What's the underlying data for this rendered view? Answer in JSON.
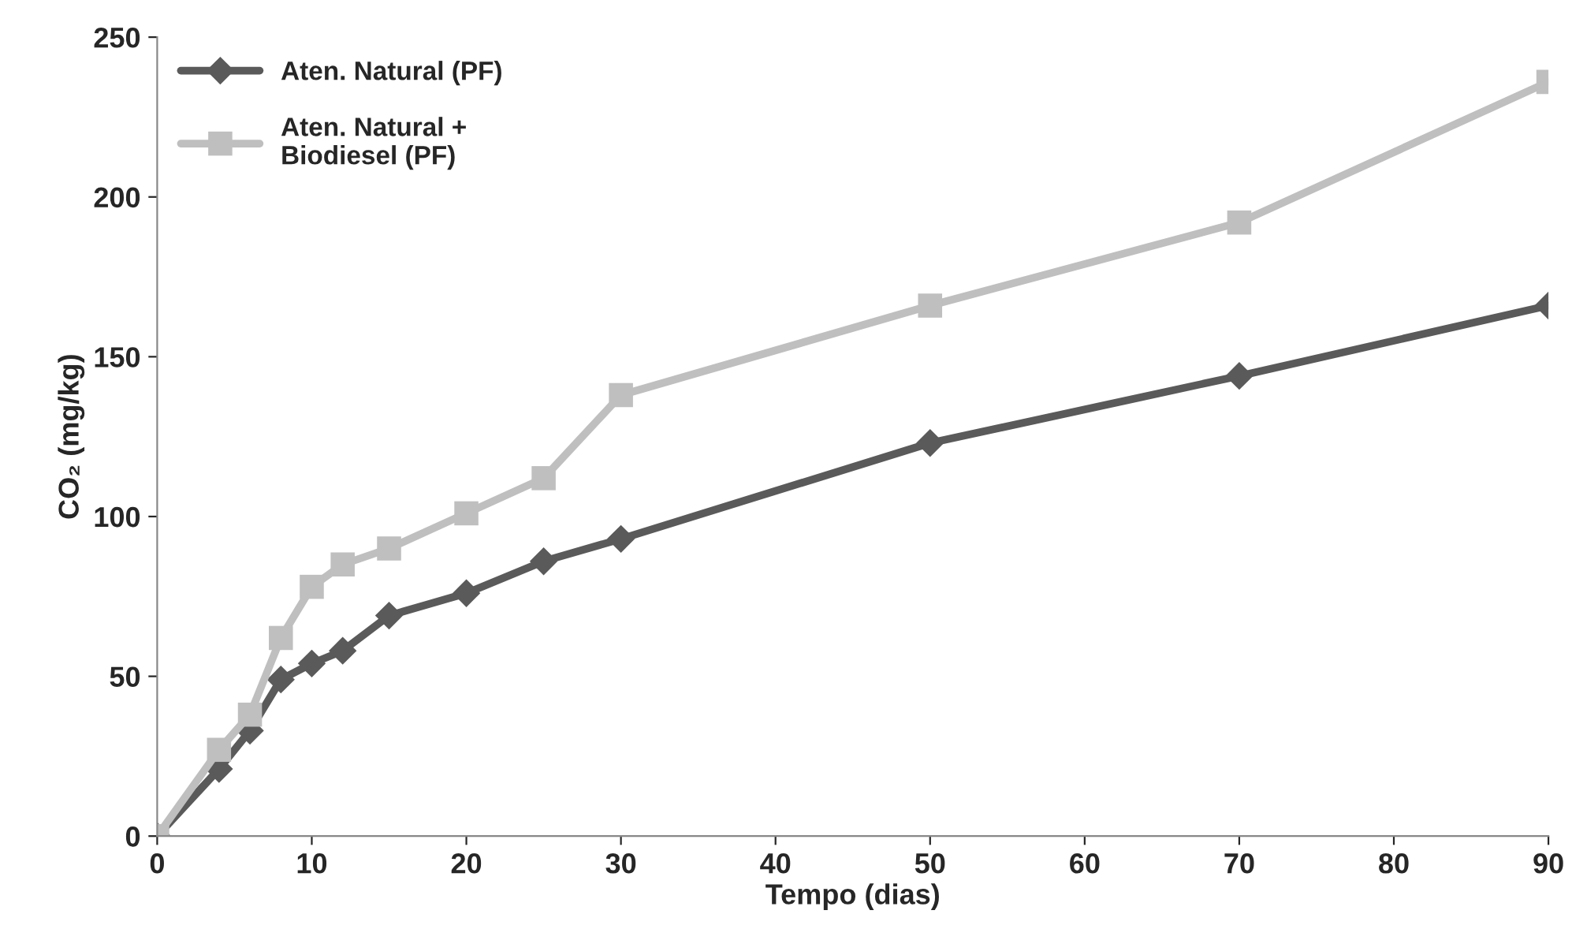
{
  "chart_data": {
    "type": "line",
    "xlabel": "Tempo (dias)",
    "ylabel": "CO₂ (mg/kg)",
    "x": [
      0,
      4,
      6,
      8,
      10,
      12,
      15,
      20,
      25,
      30,
      50,
      70,
      90
    ],
    "series": [
      {
        "name": "Aten. Natural (PF)",
        "color": "#5a5a5a",
        "marker": "diamond",
        "values": [
          0,
          21,
          33,
          49,
          54,
          58,
          69,
          76,
          86,
          93,
          123,
          144,
          166
        ]
      },
      {
        "name": "Aten. Natural +\nBiodiesel (PF)",
        "color": "#bfbfbf",
        "marker": "square",
        "values": [
          0,
          27,
          38,
          62,
          78,
          85,
          90,
          101,
          112,
          138,
          166,
          192,
          236
        ]
      }
    ],
    "xlim": [
      0,
      90
    ],
    "xticks": [
      0,
      10,
      20,
      30,
      40,
      50,
      60,
      70,
      80,
      90
    ],
    "ylim": [
      0,
      250
    ],
    "yticks": [
      0,
      50,
      100,
      150,
      200,
      250
    ],
    "grid": false,
    "legend": "top left",
    "line_style": "solid"
  }
}
